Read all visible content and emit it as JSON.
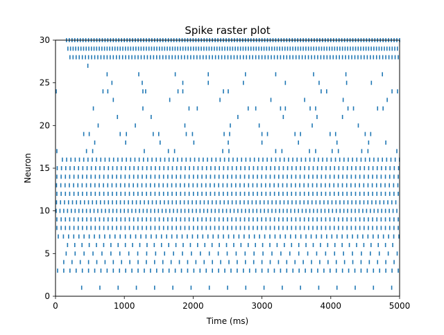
{
  "chart_data": {
    "type": "scatter",
    "subtype": "spike-raster",
    "title": "Spike raster plot",
    "xlabel": "Time (ms)",
    "ylabel": "Neuron",
    "xlim": [
      0,
      5000
    ],
    "ylim": [
      0,
      30
    ],
    "x_ticks": [
      0,
      1000,
      2000,
      3000,
      4000,
      5000
    ],
    "y_ticks": [
      0,
      5,
      10,
      15,
      20,
      25,
      30
    ],
    "x_tick_labels": [
      "0",
      "1000",
      "2000",
      "3000",
      "4000",
      "5000"
    ],
    "y_tick_labels": [
      "0",
      "5",
      "10",
      "15",
      "20",
      "25",
      "30"
    ],
    "grid": false,
    "legend": "none",
    "marker": "vertical-line",
    "marker_color": "#1f77b4",
    "spike_trains": [
      {
        "neuron": 1,
        "start": 380,
        "interval": 265
      },
      {
        "neuron": 3,
        "start": 30,
        "interval": 90
      },
      {
        "neuron": 4,
        "start": 120,
        "interval": 120
      },
      {
        "neuron": 5,
        "start": 155,
        "interval": 130
      },
      {
        "neuron": 6,
        "start": 175,
        "interval": 105
      },
      {
        "neuron": 7,
        "start": 40,
        "interval": 75
      },
      {
        "neuron": 8,
        "start": 20,
        "interval": 62
      },
      {
        "neuron": 9,
        "start": 20,
        "interval": 62
      },
      {
        "neuron": 10,
        "start": 10,
        "interval": 55
      },
      {
        "neuron": 11,
        "start": 15,
        "interval": 58
      },
      {
        "neuron": 12,
        "start": 20,
        "interval": 62
      },
      {
        "neuron": 13,
        "start": 15,
        "interval": 62
      },
      {
        "neuron": 14,
        "start": 20,
        "interval": 62
      },
      {
        "neuron": 15,
        "start": 25,
        "interval": 62
      },
      {
        "neuron": 16,
        "start": 100,
        "interval": 62
      },
      {
        "neuron": 28,
        "start": 210,
        "interval": 45
      },
      {
        "neuron": 29,
        "start": 180,
        "interval": 38
      },
      {
        "neuron": 30,
        "start": 160,
        "interval": 40
      }
    ],
    "spikes": [
      {
        "neuron": 17,
        "times": [
          20,
          450,
          540,
          1290,
          1640,
          1730,
          2430,
          2520,
          3200,
          3290,
          3690,
          3780,
          4020,
          4110,
          4450,
          4540,
          4960
        ]
      },
      {
        "neuron": 18,
        "times": [
          570,
          1020,
          1520,
          2010,
          2510,
          3000,
          3530,
          4090,
          4550,
          4800
        ]
      },
      {
        "neuron": 19,
        "times": [
          410,
          490,
          940,
          1030,
          1420,
          1500,
          1900,
          1990,
          2450,
          2530,
          3000,
          3080,
          3480,
          3560,
          3990,
          4070,
          4500,
          4580
        ]
      },
      {
        "neuron": 20,
        "times": [
          620,
          1160,
          1880,
          2540,
          2960,
          3730,
          4400
        ]
      },
      {
        "neuron": 21,
        "times": [
          900,
          1390,
          2650,
          3310,
          3800,
          4170
        ]
      },
      {
        "neuron": 22,
        "times": [
          550,
          1270,
          1940,
          2060,
          2800,
          2910,
          3270,
          3340,
          3700,
          3780,
          4250,
          4330,
          4680,
          4760
        ]
      },
      {
        "neuron": 23,
        "times": [
          840,
          1660,
          2390,
          3130,
          3620,
          4180,
          4820
        ]
      },
      {
        "neuron": 24,
        "times": [
          10,
          690,
          760,
          1270,
          1310,
          1780,
          1850,
          2440,
          2510,
          3860,
          3940,
          4890,
          4970
        ]
      },
      {
        "neuron": 25,
        "times": [
          820,
          1260,
          1850,
          2220,
          2730,
          3340,
          3830,
          4230,
          4590
        ]
      },
      {
        "neuron": 26,
        "times": [
          750,
          1210,
          1740,
          2220,
          2760,
          3200,
          3750,
          4220,
          4750
        ]
      },
      {
        "neuron": 27,
        "times": [
          470
        ]
      }
    ]
  }
}
